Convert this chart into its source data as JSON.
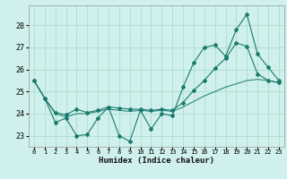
{
  "title": "",
  "xlabel": "Humidex (Indice chaleur)",
  "ylabel": "",
  "background_color": "#cff0ec",
  "grid_color": "#aaddcc",
  "line_color": "#1a7a6e",
  "xlim": [
    -0.5,
    23.5
  ],
  "ylim": [
    22.5,
    28.9
  ],
  "yticks": [
    23,
    24,
    25,
    26,
    27,
    28
  ],
  "xticks": [
    0,
    1,
    2,
    3,
    4,
    5,
    6,
    7,
    8,
    9,
    10,
    11,
    12,
    13,
    14,
    15,
    16,
    17,
    18,
    19,
    20,
    21,
    22,
    23
  ],
  "line1_x": [
    0,
    1,
    2,
    3,
    4,
    5,
    6,
    7,
    8,
    9,
    10,
    11,
    12,
    13,
    14,
    15,
    16,
    17,
    18,
    19,
    20,
    21,
    22,
    23
  ],
  "line1_y": [
    25.5,
    24.7,
    23.6,
    23.8,
    23.0,
    23.05,
    23.8,
    24.3,
    23.0,
    22.75,
    24.15,
    23.3,
    24.0,
    23.9,
    25.2,
    26.3,
    27.0,
    27.1,
    26.6,
    27.8,
    28.5,
    26.7,
    26.1,
    25.5
  ],
  "line2_x": [
    0,
    1,
    2,
    3,
    4,
    5,
    6,
    7,
    8,
    9,
    10,
    11,
    12,
    13,
    14,
    15,
    16,
    17,
    18,
    19,
    20,
    21,
    22,
    23
  ],
  "line2_y": [
    25.5,
    24.7,
    24.05,
    23.95,
    24.2,
    24.05,
    24.15,
    24.3,
    24.25,
    24.2,
    24.2,
    24.15,
    24.2,
    24.15,
    24.5,
    25.05,
    25.5,
    26.05,
    26.5,
    27.2,
    27.05,
    25.8,
    25.5,
    25.4
  ],
  "line3_x": [
    0,
    1,
    2,
    3,
    4,
    5,
    6,
    7,
    8,
    9,
    10,
    11,
    12,
    13,
    14,
    15,
    16,
    17,
    18,
    19,
    20,
    21,
    22,
    23
  ],
  "line3_y": [
    25.5,
    24.7,
    24.0,
    23.85,
    24.0,
    24.0,
    24.1,
    24.2,
    24.15,
    24.1,
    24.15,
    24.1,
    24.15,
    24.1,
    24.3,
    24.55,
    24.8,
    25.0,
    25.2,
    25.35,
    25.5,
    25.55,
    25.5,
    25.4
  ]
}
